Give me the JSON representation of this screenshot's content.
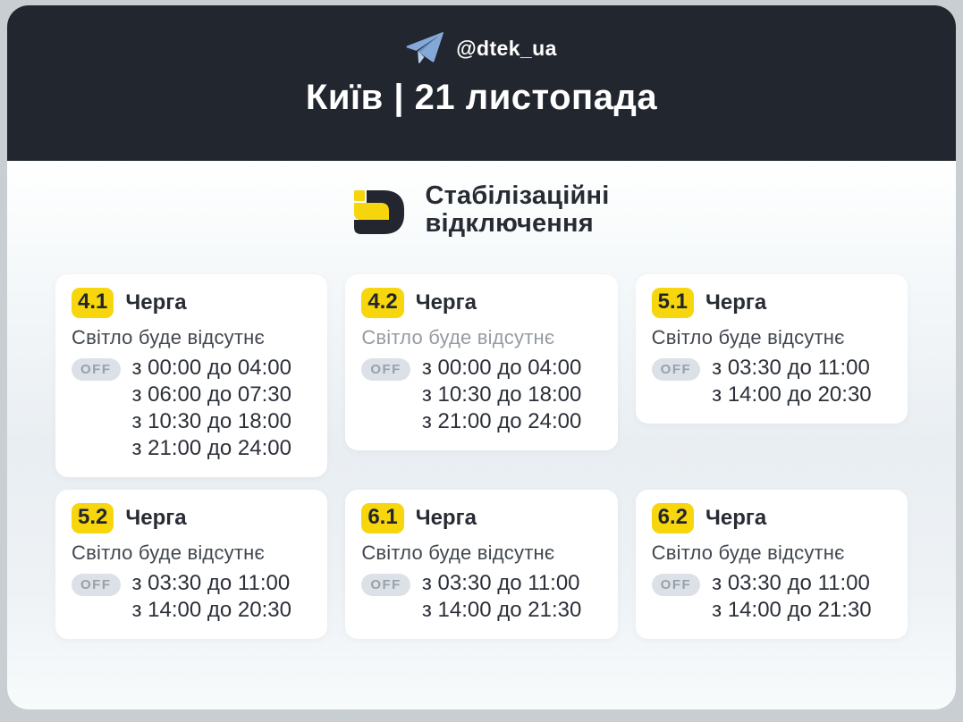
{
  "colors": {
    "page_background": "#c9ced2",
    "header_background": "#22262f",
    "accent_yellow": "#f7d60e",
    "telegram_blue": "#84a9d8",
    "dark_text": "#272b33",
    "off_pill_bg": "#dce1e7",
    "off_pill_text": "#98a0aa"
  },
  "header": {
    "telegram_icon": "telegram-paper-plane-icon",
    "channel_handle": "@dtek_ua",
    "title": "Київ | 21 листопада"
  },
  "banner": {
    "logo_icon": "dtek-logo",
    "title_line1": "Стабілізаційні",
    "title_line2": "відключення"
  },
  "cards": [
    {
      "queue": "4.1",
      "label": "Черга",
      "subtitle": "Світло буде відсутнє",
      "subtitle_color": "#41474f",
      "off_label": "OFF",
      "times": [
        "з 00:00 до 04:00",
        "з 06:00 до 07:30",
        "з 10:30 до 18:00",
        "з 21:00 до 24:00"
      ]
    },
    {
      "queue": "4.2",
      "label": "Черга",
      "subtitle": "Світло буде відсутнє",
      "subtitle_color": "#959ba3",
      "off_label": "OFF",
      "times": [
        "з 00:00 до 04:00",
        "з 10:30 до 18:00",
        "з 21:00 до 24:00"
      ]
    },
    {
      "queue": "5.1",
      "label": "Черга",
      "subtitle": "Світло буде відсутнє",
      "subtitle_color": "#41474f",
      "off_label": "OFF",
      "times": [
        "з 03:30 до 11:00",
        "з 14:00 до 20:30"
      ]
    },
    {
      "queue": "5.2",
      "label": "Черга",
      "subtitle": "Світло буде відсутнє",
      "subtitle_color": "#41474f",
      "off_label": "OFF",
      "times": [
        "з 03:30 до 11:00",
        "з 14:00 до 20:30"
      ]
    },
    {
      "queue": "6.1",
      "label": "Черга",
      "subtitle": "Світло буде відсутнє",
      "subtitle_color": "#41474f",
      "off_label": "OFF",
      "times": [
        "з 03:30 до 11:00",
        "з 14:00 до 21:30"
      ]
    },
    {
      "queue": "6.2",
      "label": "Черга",
      "subtitle": "Світло буде відсутнє",
      "subtitle_color": "#41474f",
      "off_label": "OFF",
      "times": [
        "з 03:30 до 11:00",
        "з 14:00 до 21:30"
      ]
    }
  ]
}
